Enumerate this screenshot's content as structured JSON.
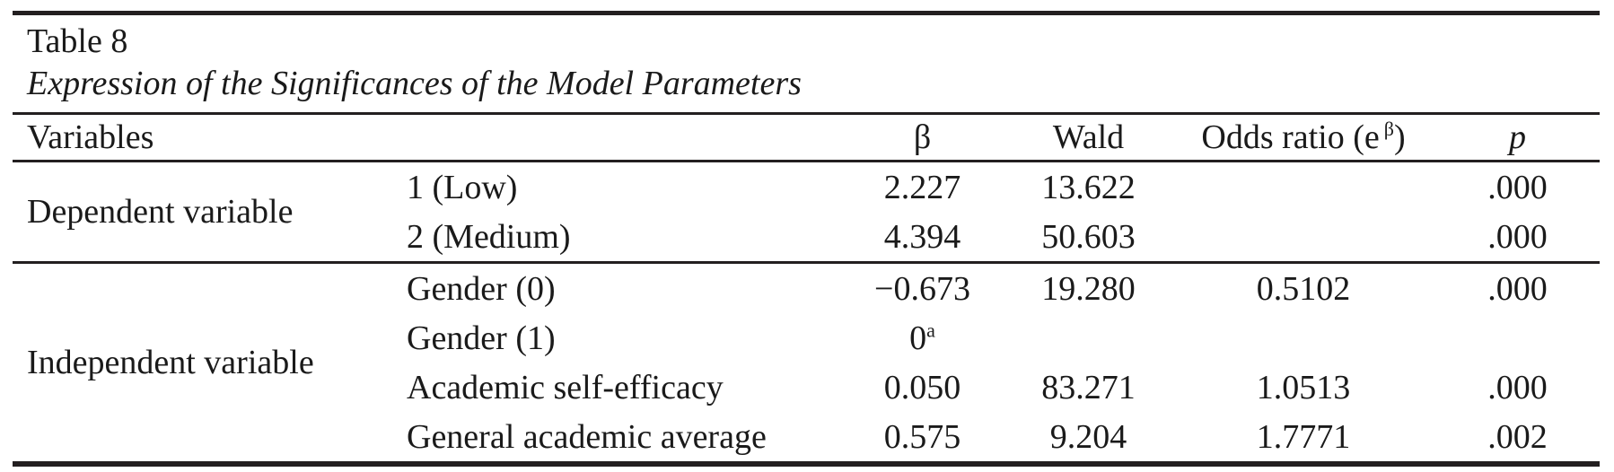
{
  "title": "Table 8",
  "caption": "Expression of the Significances of the Model Parameters",
  "colors": {
    "text": "#1a1a1a",
    "rule": "#231f20",
    "background": "#ffffff"
  },
  "columns": {
    "variables": "Variables",
    "beta": "β",
    "wald": "Wald",
    "odds_prefix": "Odds ratio (e",
    "odds_sup": "β",
    "odds_suffix": ")",
    "p": "p"
  },
  "sections": [
    {
      "group": "Dependent variable",
      "rows": [
        {
          "variable": "1 (Low)",
          "beta": "2.227",
          "wald": "13.622",
          "odds": "",
          "p": ".000"
        },
        {
          "variable": "2 (Medium)",
          "beta": "4.394",
          "wald": "50.603",
          "odds": "",
          "p": ".000"
        }
      ]
    },
    {
      "group": "Independent variable",
      "rows": [
        {
          "variable": "Gender (0)",
          "beta": "−0.673",
          "wald": "19.280",
          "odds": "0.5102",
          "p": ".000"
        },
        {
          "variable": "Gender (1)",
          "beta": "0",
          "beta_sup": "a",
          "wald": "",
          "odds": "",
          "p": ""
        },
        {
          "variable": "Academic self-efficacy",
          "beta": "0.050",
          "wald": "83.271",
          "odds": "1.0513",
          "p": ".000"
        },
        {
          "variable": "General academic average",
          "beta": "0.575",
          "wald": "9.204",
          "odds": "1.7771",
          "p": ".002"
        }
      ]
    }
  ]
}
